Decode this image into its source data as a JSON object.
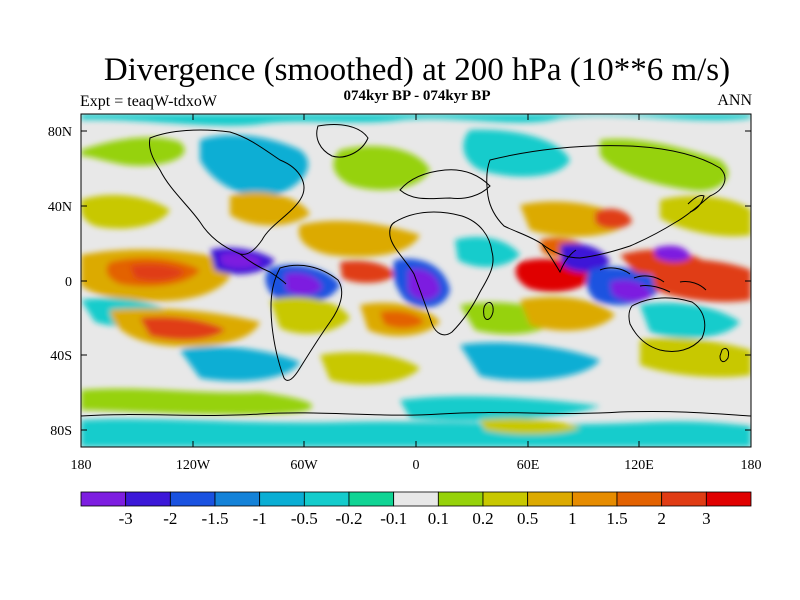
{
  "title": "Divergence (smoothed) at 200 hPa (10**6 m/s)",
  "experiment": "Expt = teaqW-tdxoW",
  "period": "074kyr BP - 074kyr BP",
  "season": "ANN",
  "map": {
    "lat_ticks": [
      "80N",
      "40N",
      "0",
      "40S",
      "80S"
    ],
    "lon_ticks": [
      "180",
      "120W",
      "60W",
      "0",
      "60E",
      "120E",
      "180"
    ]
  },
  "colorbar": {
    "colors": [
      "#7d1ee0",
      "#3c18d8",
      "#1a52e0",
      "#1482d8",
      "#0aaed4",
      "#14cccc",
      "#10d494",
      "#e8e8e8",
      "#96d20a",
      "#c8c800",
      "#dcaa00",
      "#e68c00",
      "#e36200",
      "#e03c14",
      "#e00000"
    ],
    "labels": [
      "-3",
      "-2",
      "-1.5",
      "-1",
      "-0.5",
      "-0.2",
      "-0.1",
      "0.1",
      "0.2",
      "0.5",
      "1",
      "1.5",
      "2",
      "3"
    ]
  }
}
